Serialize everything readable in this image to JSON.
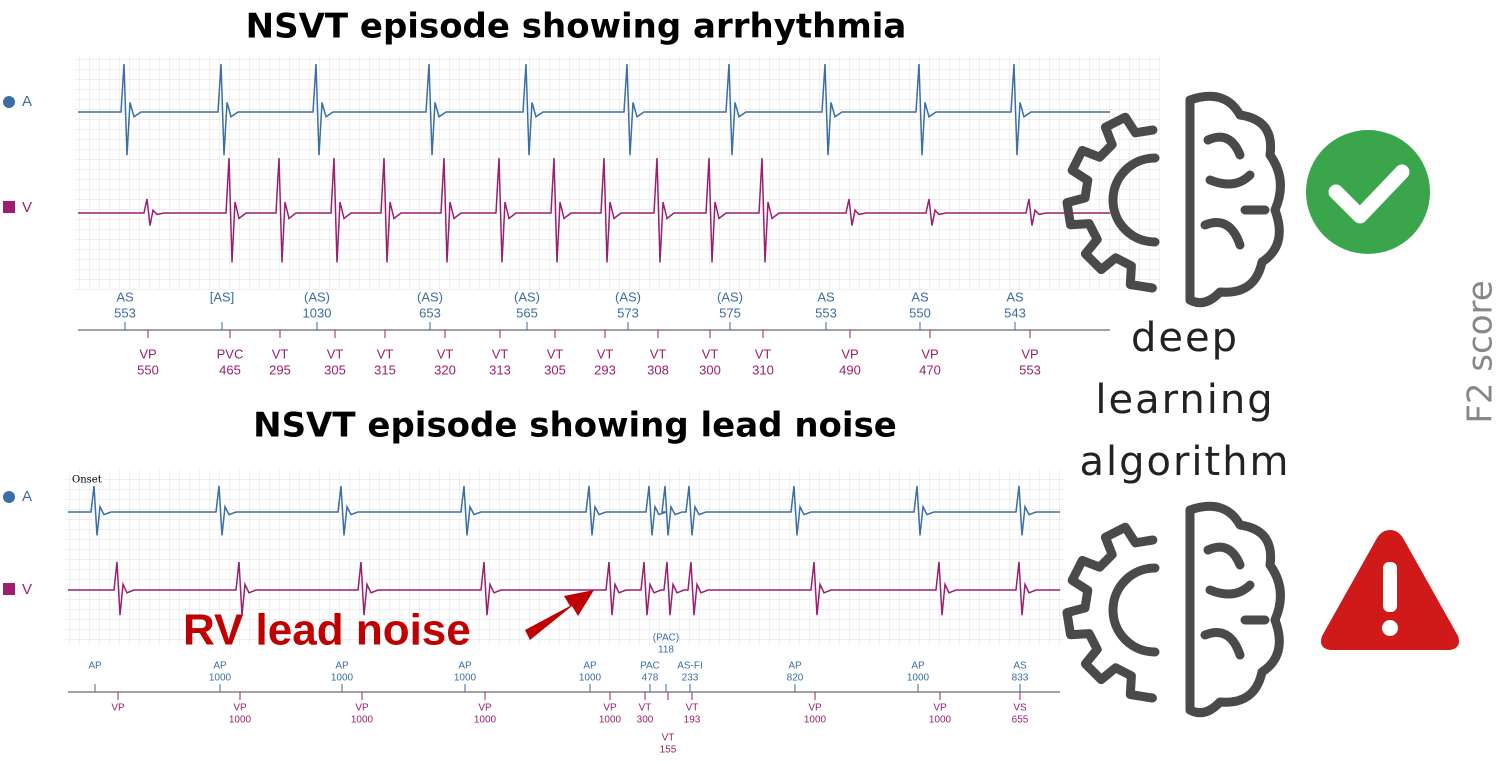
{
  "top": {
    "title": "NSVT episode showing arrhythmia",
    "channels": [
      "A",
      "V"
    ],
    "atrial_markers": [
      {
        "label": "AS",
        "interval": 553
      },
      {
        "label": "[AS]"
      },
      {
        "label": "(AS)",
        "interval": 1030
      },
      {
        "label": "(AS)",
        "interval": 653
      },
      {
        "label": "(AS)",
        "interval": 565
      },
      {
        "label": "(AS)",
        "interval": 573
      },
      {
        "label": "(AS)",
        "interval": 575
      },
      {
        "label": "AS",
        "interval": 553
      },
      {
        "label": "AS",
        "interval": 550
      },
      {
        "label": "AS",
        "interval": 543
      }
    ],
    "ventricular_markers": [
      {
        "label": "VP",
        "interval": 550
      },
      {
        "label": "PVC",
        "interval": 465
      },
      {
        "label": "VT",
        "interval": 295
      },
      {
        "label": "VT",
        "interval": 305
      },
      {
        "label": "VT",
        "interval": 315
      },
      {
        "label": "VT",
        "interval": 320
      },
      {
        "label": "VT",
        "interval": 313
      },
      {
        "label": "VT",
        "interval": 305
      },
      {
        "label": "VT",
        "interval": 293
      },
      {
        "label": "VT",
        "interval": 308
      },
      {
        "label": "VT",
        "interval": 300
      },
      {
        "label": "VT",
        "interval": 310
      },
      {
        "label": "VP",
        "interval": 490
      },
      {
        "label": "VP",
        "interval": 470
      },
      {
        "label": "VP",
        "interval": 553
      }
    ]
  },
  "bottom": {
    "title": "NSVT episode showing lead noise",
    "onset": "Onset",
    "channels": [
      "A",
      "V"
    ],
    "annotation": "RV lead noise",
    "atrial_markers": [
      {
        "label": "AP"
      },
      {
        "label": "AP",
        "interval": 1000
      },
      {
        "label": "AP",
        "interval": 1000
      },
      {
        "label": "AP",
        "interval": 1000
      },
      {
        "label": "AP",
        "interval": 1000
      },
      {
        "label": "PAC",
        "interval": 478
      },
      {
        "label": "(PAC)",
        "interval": 118
      },
      {
        "label": "AS-FI",
        "interval": 233
      },
      {
        "label": "AP",
        "interval": 820
      },
      {
        "label": "AP",
        "interval": 1000
      },
      {
        "label": "AS",
        "interval": 833
      }
    ],
    "ventricular_markers": [
      {
        "label": "VP"
      },
      {
        "label": "VP",
        "interval": 1000
      },
      {
        "label": "VP",
        "interval": 1000
      },
      {
        "label": "VP",
        "interval": 1000
      },
      {
        "label": "VP",
        "interval": 1000
      },
      {
        "label": "VT",
        "interval": 300
      },
      {
        "label": "VT",
        "interval": 155
      },
      {
        "label": "VT",
        "interval": 193
      },
      {
        "label": "VP",
        "interval": 1000
      },
      {
        "label": "VP",
        "interval": 1000
      },
      {
        "label": "VS",
        "interval": 655
      }
    ]
  },
  "algorithm": {
    "lines": [
      "deep",
      "learning",
      "algorithm"
    ]
  },
  "metric_label": "F2 score"
}
